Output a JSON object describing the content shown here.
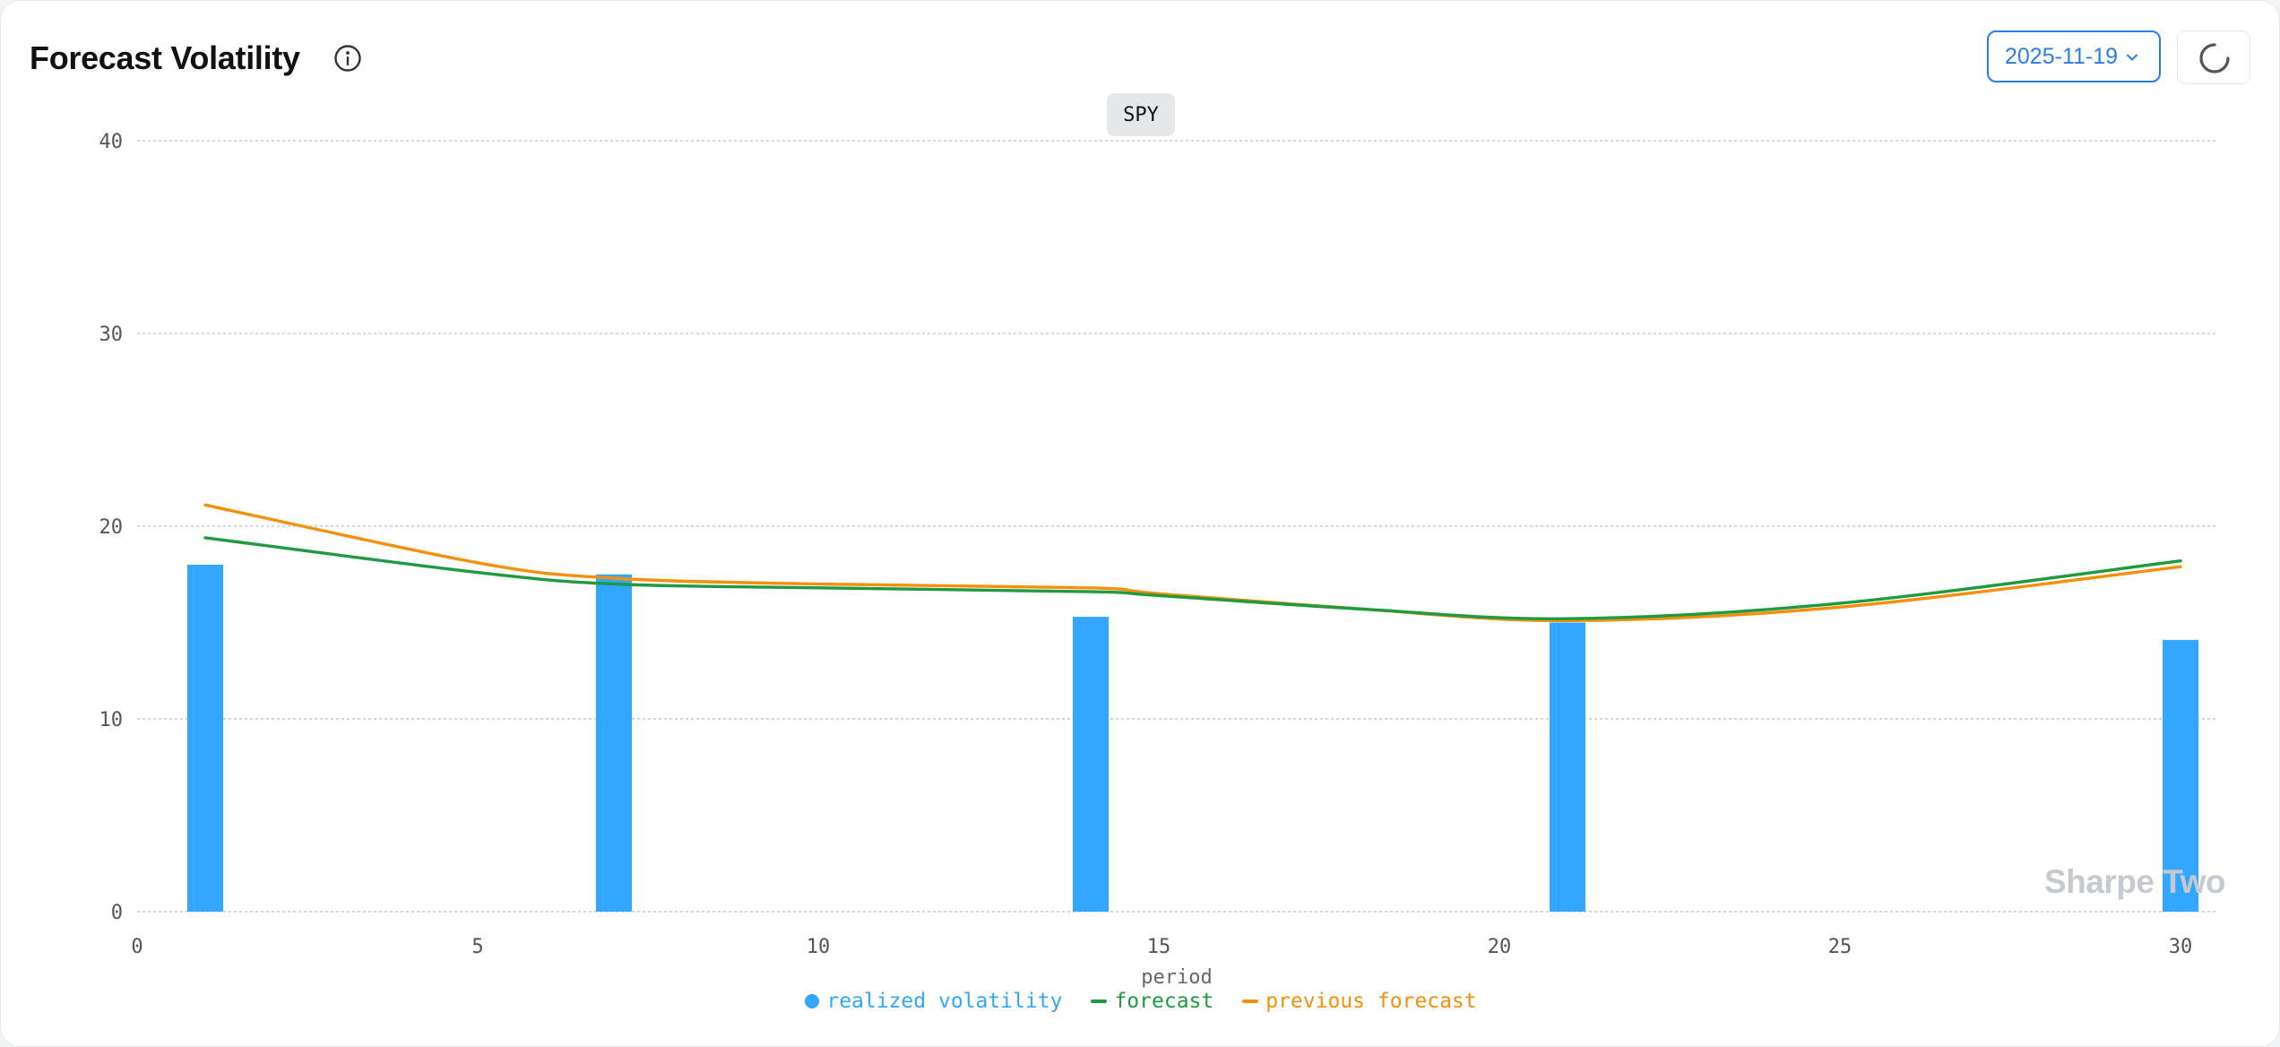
{
  "header": {
    "title": "Forecast Volatility",
    "date_value": "2025-11-19"
  },
  "icons": {
    "info": "info-icon",
    "chevron": "chevron-down-icon",
    "refresh": "loading-spinner-icon"
  },
  "ticker": "SPY",
  "watermark": "Sharpe Two",
  "colors": {
    "realized": "#33a7ff",
    "forecast": "#1f9a41",
    "previous": "#f4900c",
    "accent": "#2b7de9",
    "grid": "#c8c8c8"
  },
  "chart_data": {
    "type": "bar",
    "title": "",
    "xlabel": "period",
    "ylabel": "",
    "xlim": [
      0,
      30
    ],
    "ylim": [
      0,
      40
    ],
    "xticks": [
      0,
      5,
      10,
      15,
      20,
      25,
      30
    ],
    "yticks": [
      0,
      10,
      20,
      30,
      40
    ],
    "grid": true,
    "legend_position": "bottom-center",
    "series": [
      {
        "name": "realized volatility",
        "type": "bar",
        "x": [
          1,
          7,
          14,
          21,
          30
        ],
        "values": [
          18.0,
          17.5,
          15.3,
          15.0,
          14.1
        ]
      },
      {
        "name": "forecast",
        "type": "line",
        "x": [
          1,
          5,
          7,
          10,
          14,
          15,
          18,
          21,
          25,
          30
        ],
        "values": [
          19.4,
          17.6,
          17.0,
          16.8,
          16.6,
          16.4,
          15.7,
          15.2,
          16.0,
          18.2
        ]
      },
      {
        "name": "previous forecast",
        "type": "line",
        "x": [
          1,
          5,
          7,
          10,
          14,
          15,
          18,
          21,
          25,
          30
        ],
        "values": [
          21.1,
          18.1,
          17.3,
          17.0,
          16.8,
          16.5,
          15.7,
          15.1,
          15.8,
          17.9
        ]
      }
    ]
  }
}
